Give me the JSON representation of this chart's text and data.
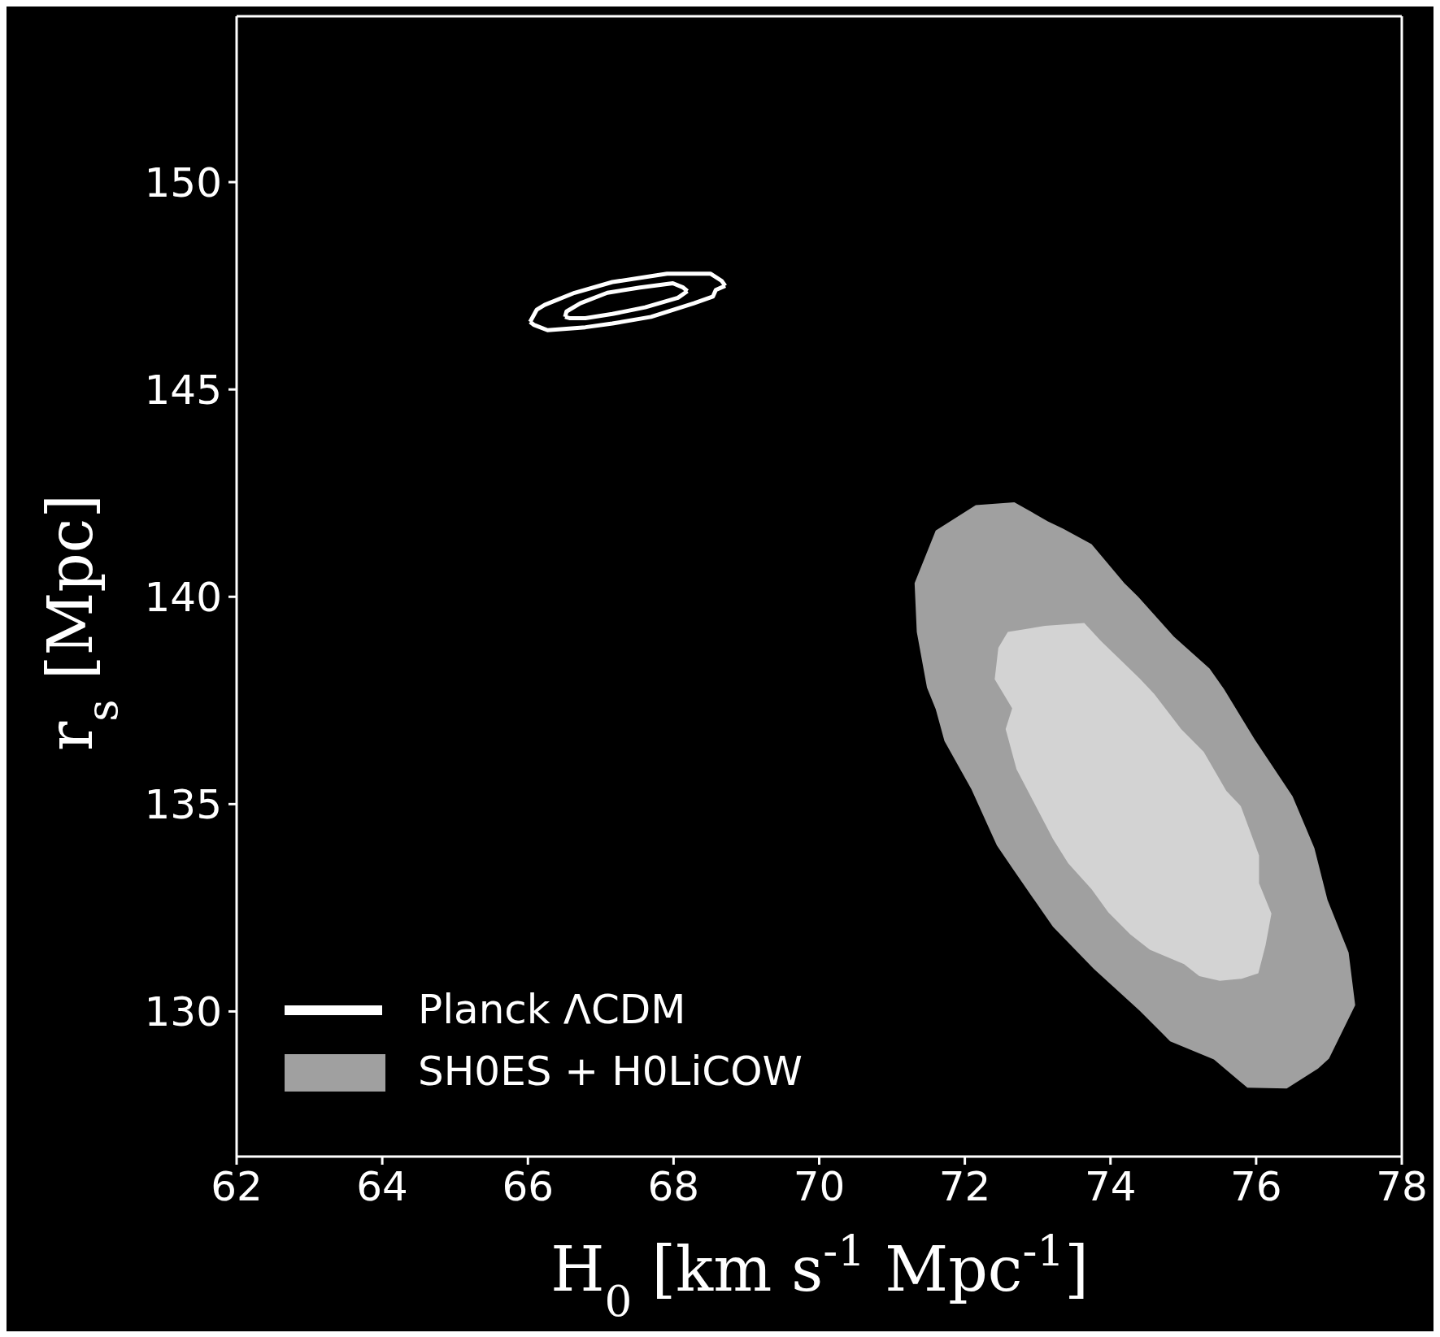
{
  "chart_data": {
    "type": "area",
    "xlabel": "H$_{0}$ [km s$^{-1}$ Mpc$^{-1}$]",
    "ylabel": "r$_{s}$ [Mpc]",
    "xlim": [
      62,
      78
    ],
    "xticks": [
      62,
      64,
      66,
      68,
      70,
      72,
      74,
      76,
      78
    ],
    "ylim": [
      126.5,
      154
    ],
    "yticks": [
      130,
      135,
      140,
      145,
      150
    ],
    "legend": "lower left",
    "series": [
      {
        "name": "Planck ΛCDM",
        "type": "line",
        "color": "#ffffff",
        "x": [
          66.03,
          66.12,
          66.23,
          66.64,
          67.16,
          67.91,
          68.51,
          68.66,
          68.71
        ],
        "values": [
          146.63,
          146.92,
          147.04,
          147.33,
          147.59,
          147.79,
          147.79,
          147.62,
          147.5
        ]
      },
      {
        "type": "line",
        "color": "#ffffff",
        "x": [
          66.03,
          66.08,
          66.27,
          66.79,
          67.16,
          67.69,
          68.28,
          68.54,
          68.58,
          68.71
        ],
        "values": [
          146.63,
          146.56,
          146.43,
          146.5,
          146.59,
          146.75,
          147.08,
          147.24,
          147.4,
          147.5
        ]
      },
      {
        "type": "line",
        "color": "#ffffff",
        "x": [
          66.51,
          66.53,
          66.72,
          67.09,
          67.54,
          67.99,
          68.13,
          68.19
        ],
        "values": [
          146.75,
          146.88,
          147.08,
          147.33,
          147.46,
          147.56,
          147.46,
          147.37
        ]
      },
      {
        "type": "line",
        "color": "#ffffff",
        "x": [
          66.51,
          66.57,
          66.79,
          67.16,
          67.61,
          68.06,
          68.19
        ],
        "values": [
          146.75,
          146.72,
          146.72,
          146.82,
          146.98,
          147.21,
          147.37
        ]
      },
      {
        "name": "SH0ES + H0LiCOW",
        "color": "#a0a0a0",
        "x": [
          71.31,
          71.6,
          72.15,
          72.68,
          73.14,
          73.35,
          73.74,
          74.19,
          74.38,
          74.87,
          75.36,
          75.56,
          75.98,
          76.5,
          76.8,
          76.98,
          77.27,
          77.36,
          77.0,
          76.85,
          76.42,
          75.88,
          75.42,
          74.82,
          74.4,
          73.77,
          73.21,
          72.67,
          72.44,
          72.09,
          71.72,
          71.6,
          71.48,
          71.34
        ],
        "values": [
          140.33,
          141.6,
          142.21,
          142.28,
          141.82,
          141.64,
          141.27,
          140.33,
          140.0,
          139.04,
          138.27,
          137.77,
          136.56,
          135.19,
          133.94,
          132.69,
          131.42,
          130.15,
          128.86,
          128.62,
          128.14,
          128.16,
          128.84,
          129.28,
          130.02,
          131.03,
          132.04,
          133.41,
          134.0,
          135.36,
          136.52,
          137.29,
          137.81,
          139.15
        ]
      },
      {
        "color": "#d3d3d3",
        "x": [
          72.59,
          73.1,
          73.64,
          73.87,
          74.4,
          74.6,
          74.97,
          75.28,
          75.59,
          75.79,
          76.04,
          76.04,
          76.21,
          76.13,
          76.03,
          75.8,
          75.5,
          75.22,
          75.01,
          74.54,
          74.27,
          73.97,
          73.74,
          73.42,
          73.21,
          72.99,
          72.71,
          72.56,
          72.65,
          72.41,
          72.46
        ],
        "values": [
          139.15,
          139.3,
          139.37,
          138.93,
          138.03,
          137.66,
          136.81,
          136.26,
          135.32,
          134.95,
          133.76,
          133.09,
          132.36,
          131.6,
          130.92,
          130.79,
          130.74,
          130.85,
          131.14,
          131.49,
          131.86,
          132.39,
          132.95,
          133.57,
          134.16,
          134.9,
          135.84,
          136.81,
          137.31,
          138.01,
          138.77
        ]
      }
    ]
  }
}
